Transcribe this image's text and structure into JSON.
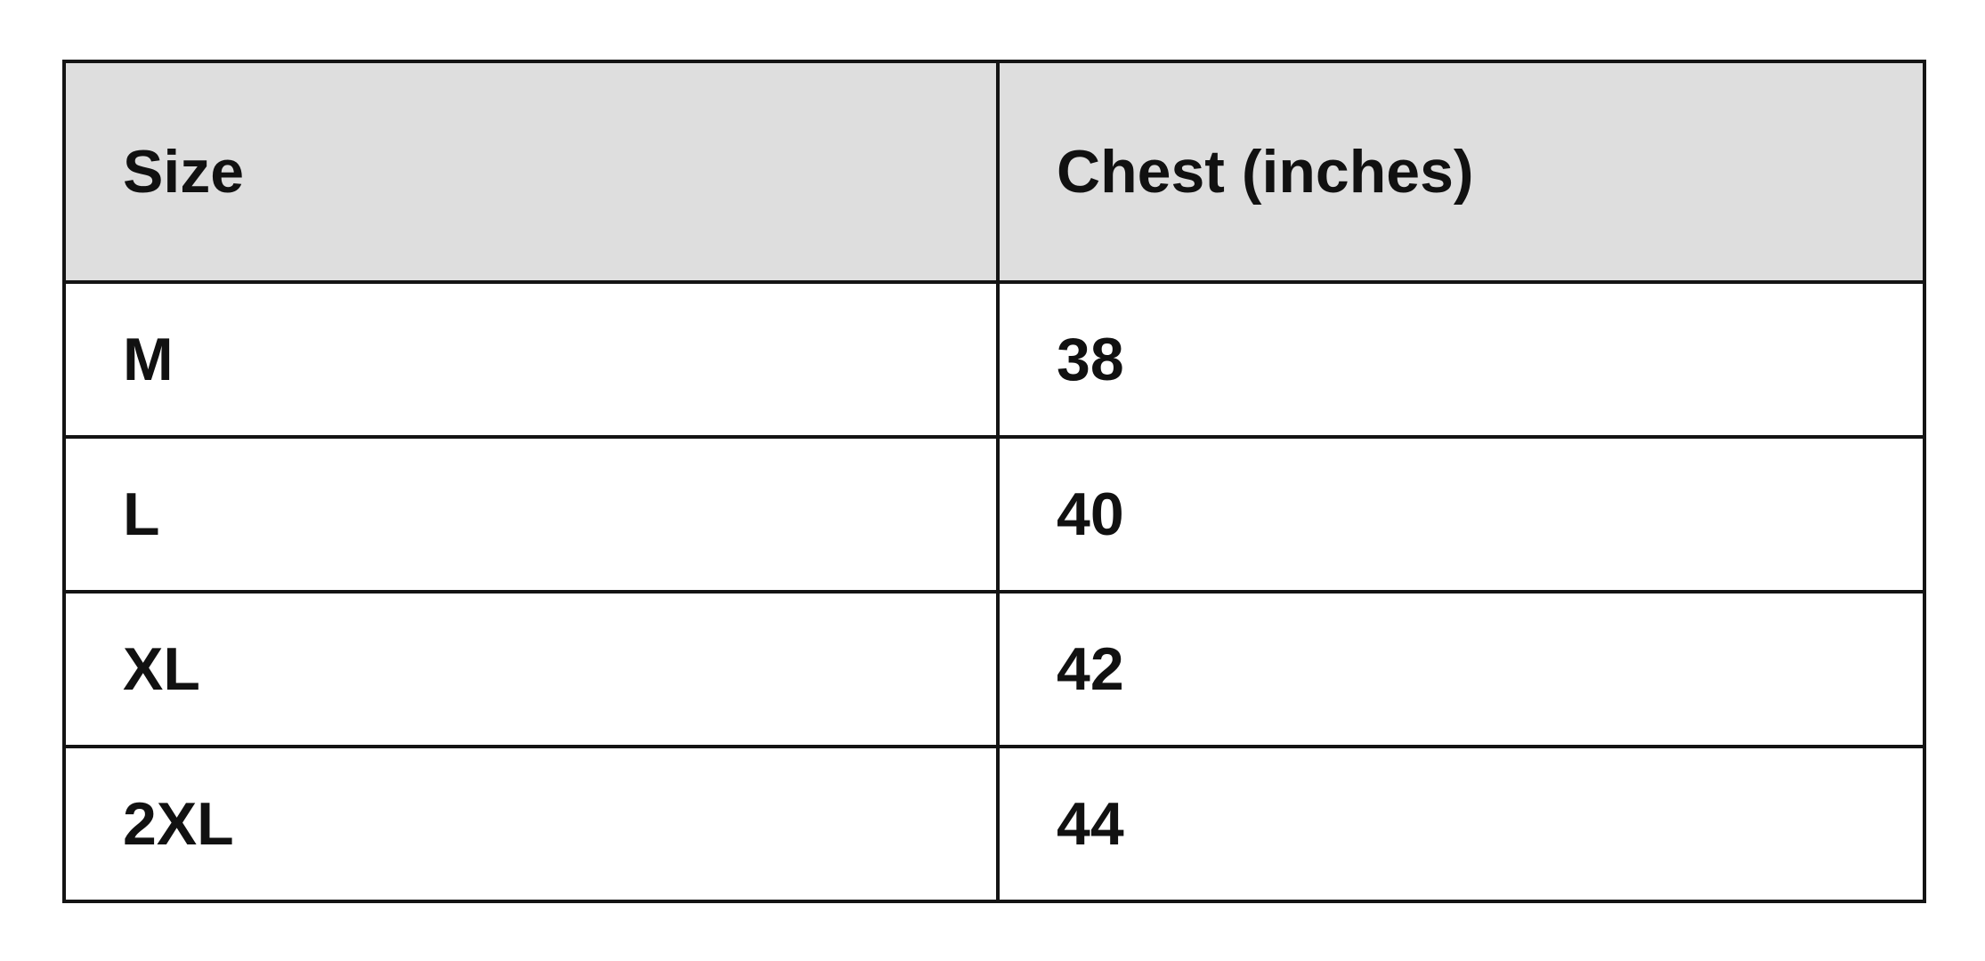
{
  "table": {
    "header": [
      "Size",
      "Chest (inches)"
    ],
    "rows": [
      [
        "M",
        38
      ],
      [
        "L",
        40
      ],
      [
        "XL",
        42
      ],
      [
        "2XL",
        44
      ]
    ]
  }
}
